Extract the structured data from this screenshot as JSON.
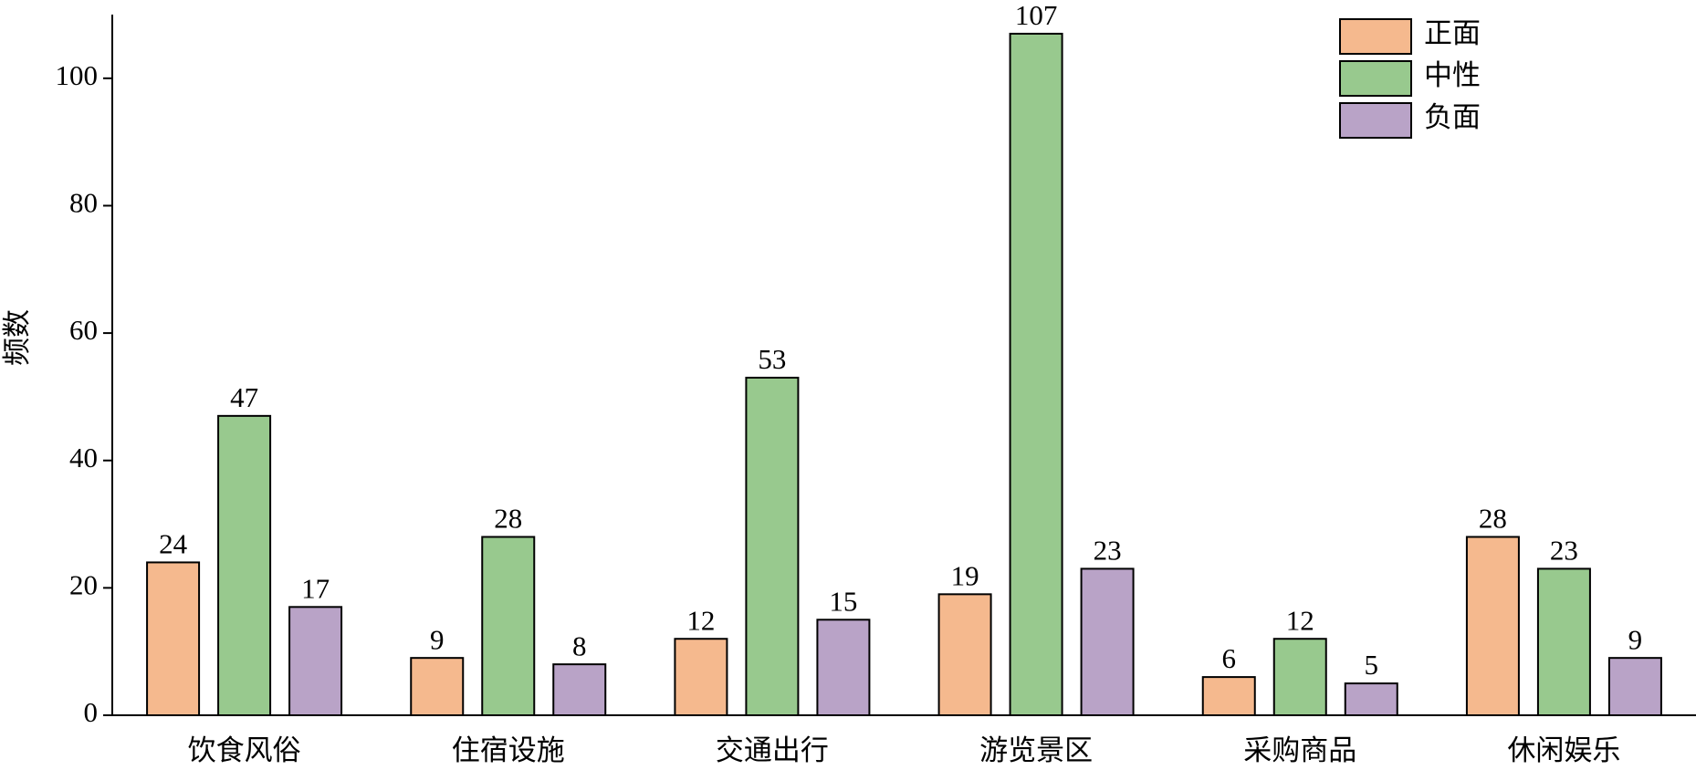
{
  "chart_data": {
    "type": "bar",
    "y_label": "频数",
    "categories": [
      "饮食风俗",
      "住宿设施",
      "交通出行",
      "游览景区",
      "采购商品",
      "休闲娱乐"
    ],
    "series": [
      {
        "name": "正面",
        "color": "#f5b98e",
        "values": [
          24,
          9,
          12,
          19,
          6,
          28
        ]
      },
      {
        "name": "中性",
        "color": "#98c98e",
        "values": [
          47,
          28,
          53,
          107,
          12,
          23
        ]
      },
      {
        "name": "负面",
        "color": "#b9a3c7",
        "values": [
          17,
          8,
          15,
          23,
          5,
          9
        ]
      }
    ],
    "ylim": [
      0,
      110
    ],
    "yticks": [
      0,
      20,
      40,
      60,
      80,
      100
    ],
    "grid": false,
    "legend": "top-right"
  }
}
